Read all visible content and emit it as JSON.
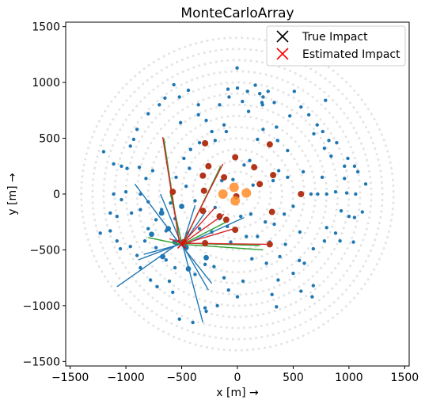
{
  "chart_data": {
    "type": "scatter",
    "title": "MonteCarloArray",
    "xlabel": "x [m] →",
    "ylabel": "y [m] →",
    "xlim": [
      -1540,
      1540
    ],
    "ylim": [
      -1540,
      1540
    ],
    "xticks": [
      -1500,
      -1000,
      -500,
      0,
      500,
      1000,
      1500
    ],
    "yticks": [
      -1500,
      -1000,
      -500,
      0,
      500,
      1000,
      1500
    ],
    "xtick_labels": [
      "−1500",
      "−1000",
      "−500",
      "0",
      "500",
      "1000",
      "1500"
    ],
    "ytick_labels": [
      "−1500",
      "−1000",
      "−500",
      "0",
      "500",
      "1000",
      "1500"
    ],
    "grid": false,
    "legend": {
      "placement": "upper right",
      "entries": [
        {
          "label": "True Impact",
          "marker": "x",
          "color": "#000000"
        },
        {
          "label": "Estimated Impact",
          "marker": "x",
          "color": "#ff0000"
        }
      ]
    },
    "colors": {
      "ring": "#e3e3e3",
      "telescope_small": "#1f77b4",
      "telescope_triggered": "#1f77b4",
      "telescope_red": "#b2351a",
      "telescope_orange": "#ff8c28",
      "line_blue": "#1f77b4",
      "line_green": "#2ca02c",
      "line_red": "#d62728"
    },
    "rings": {
      "radii": [
        100,
        200,
        300,
        400,
        500,
        600,
        700,
        800,
        900,
        1000,
        1100,
        1200,
        1300,
        1400
      ],
      "dot_spacing": 52
    },
    "impact": {
      "x": -500,
      "y": -450
    },
    "telescopes_small": [
      [
        -3,
        1130
      ],
      [
        -85,
        940
      ],
      [
        -75,
        870
      ],
      [
        0,
        950
      ],
      [
        90,
        920
      ],
      [
        160,
        975
      ],
      [
        200,
        900
      ],
      [
        230,
        870
      ],
      [
        45,
        830
      ],
      [
        100,
        740
      ],
      [
        220,
        820
      ],
      [
        225,
        800
      ],
      [
        275,
        920
      ],
      [
        330,
        820
      ],
      [
        470,
        700
      ],
      [
        510,
        920
      ],
      [
        570,
        780
      ],
      [
        640,
        710
      ],
      [
        790,
        840
      ],
      [
        715,
        620
      ],
      [
        765,
        560
      ],
      [
        685,
        540
      ],
      [
        820,
        480
      ],
      [
        890,
        460
      ],
      [
        990,
        320
      ],
      [
        1050,
        250
      ],
      [
        780,
        410
      ],
      [
        840,
        340
      ],
      [
        960,
        250
      ],
      [
        590,
        200
      ],
      [
        760,
        150
      ],
      [
        960,
        140
      ],
      [
        1080,
        200
      ],
      [
        1150,
        90
      ],
      [
        880,
        20
      ],
      [
        980,
        10
      ],
      [
        1060,
        0
      ],
      [
        660,
        0
      ],
      [
        720,
        0
      ],
      [
        800,
        0
      ],
      [
        930,
        -150
      ],
      [
        1000,
        -200
      ],
      [
        1120,
        -160
      ],
      [
        1050,
        -210
      ],
      [
        800,
        -300
      ],
      [
        880,
        -350
      ],
      [
        920,
        -420
      ],
      [
        1040,
        -430
      ],
      [
        780,
        -420
      ],
      [
        680,
        -490
      ],
      [
        555,
        -595
      ],
      [
        600,
        -620
      ],
      [
        500,
        -710
      ],
      [
        365,
        -770
      ],
      [
        680,
        -820
      ],
      [
        570,
        -870
      ],
      [
        670,
        -920
      ],
      [
        310,
        -900
      ],
      [
        350,
        -1010
      ],
      [
        0,
        -920
      ],
      [
        -80,
        -860
      ],
      [
        -180,
        -1000
      ],
      [
        -280,
        -1050
      ],
      [
        -290,
        -1020
      ],
      [
        -400,
        -1150
      ],
      [
        -520,
        -1120
      ],
      [
        -580,
        -880
      ],
      [
        -610,
        -780
      ],
      [
        -720,
        -830
      ],
      [
        -780,
        -770
      ],
      [
        -870,
        -660
      ],
      [
        -900,
        -550
      ],
      [
        -960,
        -470
      ],
      [
        -1050,
        -490
      ],
      [
        -1080,
        -420
      ],
      [
        -1140,
        -330
      ],
      [
        -1230,
        -350
      ],
      [
        -1080,
        -200
      ],
      [
        -1140,
        -170
      ],
      [
        -950,
        -170
      ],
      [
        -870,
        -140
      ],
      [
        -1040,
        -50
      ],
      [
        -1110,
        0
      ],
      [
        -1000,
        20
      ],
      [
        -870,
        0
      ],
      [
        -800,
        -70
      ],
      [
        -1110,
        270
      ],
      [
        -1040,
        250
      ],
      [
        -990,
        230
      ],
      [
        -880,
        240
      ],
      [
        -820,
        140
      ],
      [
        -760,
        210
      ],
      [
        -1200,
        380
      ],
      [
        -960,
        430
      ],
      [
        -930,
        490
      ],
      [
        -900,
        580
      ],
      [
        -800,
        720
      ],
      [
        -700,
        800
      ],
      [
        -650,
        860
      ],
      [
        -570,
        980
      ],
      [
        -510,
        640
      ],
      [
        -520,
        870
      ],
      [
        -440,
        930
      ],
      [
        -350,
        800
      ],
      [
        -350,
        710
      ],
      [
        -280,
        660
      ],
      [
        -230,
        560
      ],
      [
        -160,
        800
      ],
      [
        -120,
        620
      ],
      [
        -100,
        560
      ],
      [
        -200,
        480
      ],
      [
        -340,
        460
      ],
      [
        -420,
        400
      ],
      [
        -480,
        320
      ],
      [
        -430,
        230
      ],
      [
        -550,
        150
      ],
      [
        -460,
        70
      ],
      [
        -380,
        -60
      ],
      [
        -200,
        -120
      ],
      [
        -160,
        -220
      ],
      [
        -140,
        120
      ],
      [
        -40,
        130
      ],
      [
        60,
        260
      ],
      [
        110,
        300
      ],
      [
        180,
        490
      ],
      [
        230,
        580
      ],
      [
        350,
        600
      ],
      [
        360,
        480
      ],
      [
        450,
        390
      ],
      [
        450,
        150
      ],
      [
        370,
        210
      ],
      [
        320,
        120
      ],
      [
        140,
        80
      ],
      [
        30,
        -200
      ],
      [
        120,
        -180
      ],
      [
        250,
        -250
      ],
      [
        330,
        -270
      ],
      [
        420,
        -180
      ],
      [
        500,
        -110
      ],
      [
        560,
        -340
      ],
      [
        430,
        -450
      ],
      [
        380,
        -560
      ],
      [
        260,
        -620
      ],
      [
        130,
        -580
      ],
      [
        50,
        -780
      ],
      [
        -120,
        -750
      ],
      [
        -210,
        -650
      ],
      [
        -290,
        -630
      ],
      [
        -380,
        -720
      ],
      [
        -440,
        -660
      ],
      [
        -560,
        -660
      ],
      [
        -640,
        -590
      ],
      [
        -730,
        -480
      ],
      [
        -830,
        -420
      ],
      [
        -800,
        -310
      ],
      [
        -640,
        -330
      ],
      [
        -730,
        -230
      ],
      [
        -560,
        -220
      ],
      [
        -680,
        -140
      ],
      [
        -600,
        -80
      ],
      [
        -450,
        -350
      ],
      [
        -340,
        -310
      ],
      [
        -230,
        -340
      ],
      [
        -90,
        -290
      ],
      [
        -60,
        -430
      ],
      [
        80,
        -380
      ],
      [
        180,
        -380
      ],
      [
        290,
        -430
      ]
    ],
    "telescopes_triggered": [
      [
        -680,
        -170
      ],
      [
        -500,
        -110
      ],
      [
        -620,
        -310
      ],
      [
        -770,
        -360
      ],
      [
        -460,
        -480
      ],
      [
        -670,
        -560
      ],
      [
        -440,
        -670
      ],
      [
        -280,
        -570
      ],
      [
        -560,
        -430
      ]
    ],
    "telescopes_red": [
      [
        -290,
        455
      ],
      [
        290,
        445
      ],
      [
        -20,
        330
      ],
      [
        -310,
        165
      ],
      [
        -260,
        250
      ],
      [
        150,
        240
      ],
      [
        -580,
        20
      ],
      [
        -300,
        30
      ],
      [
        -120,
        150
      ],
      [
        -310,
        -150
      ],
      [
        -160,
        -200
      ],
      [
        -100,
        -230
      ],
      [
        -480,
        -430
      ],
      [
        -290,
        -440
      ],
      [
        -20,
        -320
      ],
      [
        290,
        -450
      ],
      [
        310,
        -160
      ],
      [
        320,
        170
      ],
      [
        570,
        0
      ],
      [
        200,
        90
      ],
      [
        -10,
        -20
      ]
    ],
    "telescopes_orange": [
      [
        -130,
        0
      ],
      [
        -30,
        60
      ],
      [
        -20,
        -60
      ],
      [
        80,
        10
      ]
    ],
    "lines_blue": [
      [
        [
          -1080,
          -830
        ],
        [
          -510,
          -430
        ]
      ],
      [
        [
          -890,
          -590
        ],
        [
          -520,
          -450
        ]
      ],
      [
        [
          -920,
          90
        ],
        [
          -530,
          -430
        ]
      ],
      [
        [
          -690,
          0
        ],
        [
          -510,
          -430
        ]
      ],
      [
        [
          -600,
          10
        ],
        [
          -500,
          -440
        ]
      ],
      [
        [
          -380,
          -100
        ],
        [
          -490,
          -450
        ]
      ],
      [
        [
          -280,
          -150
        ],
        [
          -490,
          -450
        ]
      ],
      [
        [
          -230,
          -800
        ],
        [
          -500,
          -460
        ]
      ],
      [
        [
          -310,
          -1150
        ],
        [
          -490,
          -460
        ]
      ],
      [
        [
          -260,
          -860
        ],
        [
          -490,
          -460
        ]
      ],
      [
        [
          -840,
          -540
        ],
        [
          -510,
          -450
        ]
      ],
      [
        [
          60,
          -210
        ],
        [
          -490,
          -460
        ]
      ]
    ],
    "lines_green": [
      [
        [
          -660,
          500
        ],
        [
          -520,
          -440
        ]
      ],
      [
        [
          -800,
          -390
        ],
        [
          -510,
          -450
        ]
      ],
      [
        [
          -600,
          0
        ],
        [
          -500,
          -440
        ]
      ],
      [
        [
          -150,
          250
        ],
        [
          -490,
          -450
        ]
      ],
      [
        [
          200,
          -460
        ],
        [
          -500,
          -440
        ]
      ],
      [
        [
          230,
          -500
        ],
        [
          -500,
          -450
        ]
      ],
      [
        [
          -100,
          -250
        ],
        [
          -490,
          -450
        ]
      ]
    ],
    "lines_red": [
      [
        [
          -670,
          510
        ],
        [
          -520,
          -440
        ]
      ],
      [
        [
          -610,
          -400
        ],
        [
          -500,
          -440
        ]
      ],
      [
        [
          -130,
          270
        ],
        [
          -490,
          -440
        ]
      ],
      [
        [
          -200,
          -120
        ],
        [
          -500,
          -450
        ]
      ],
      [
        [
          280,
          -450
        ],
        [
          -500,
          -440
        ]
      ],
      [
        [
          -30,
          -310
        ],
        [
          -500,
          -450
        ]
      ],
      [
        [
          -120,
          -180
        ],
        [
          -500,
          -450
        ]
      ]
    ]
  }
}
